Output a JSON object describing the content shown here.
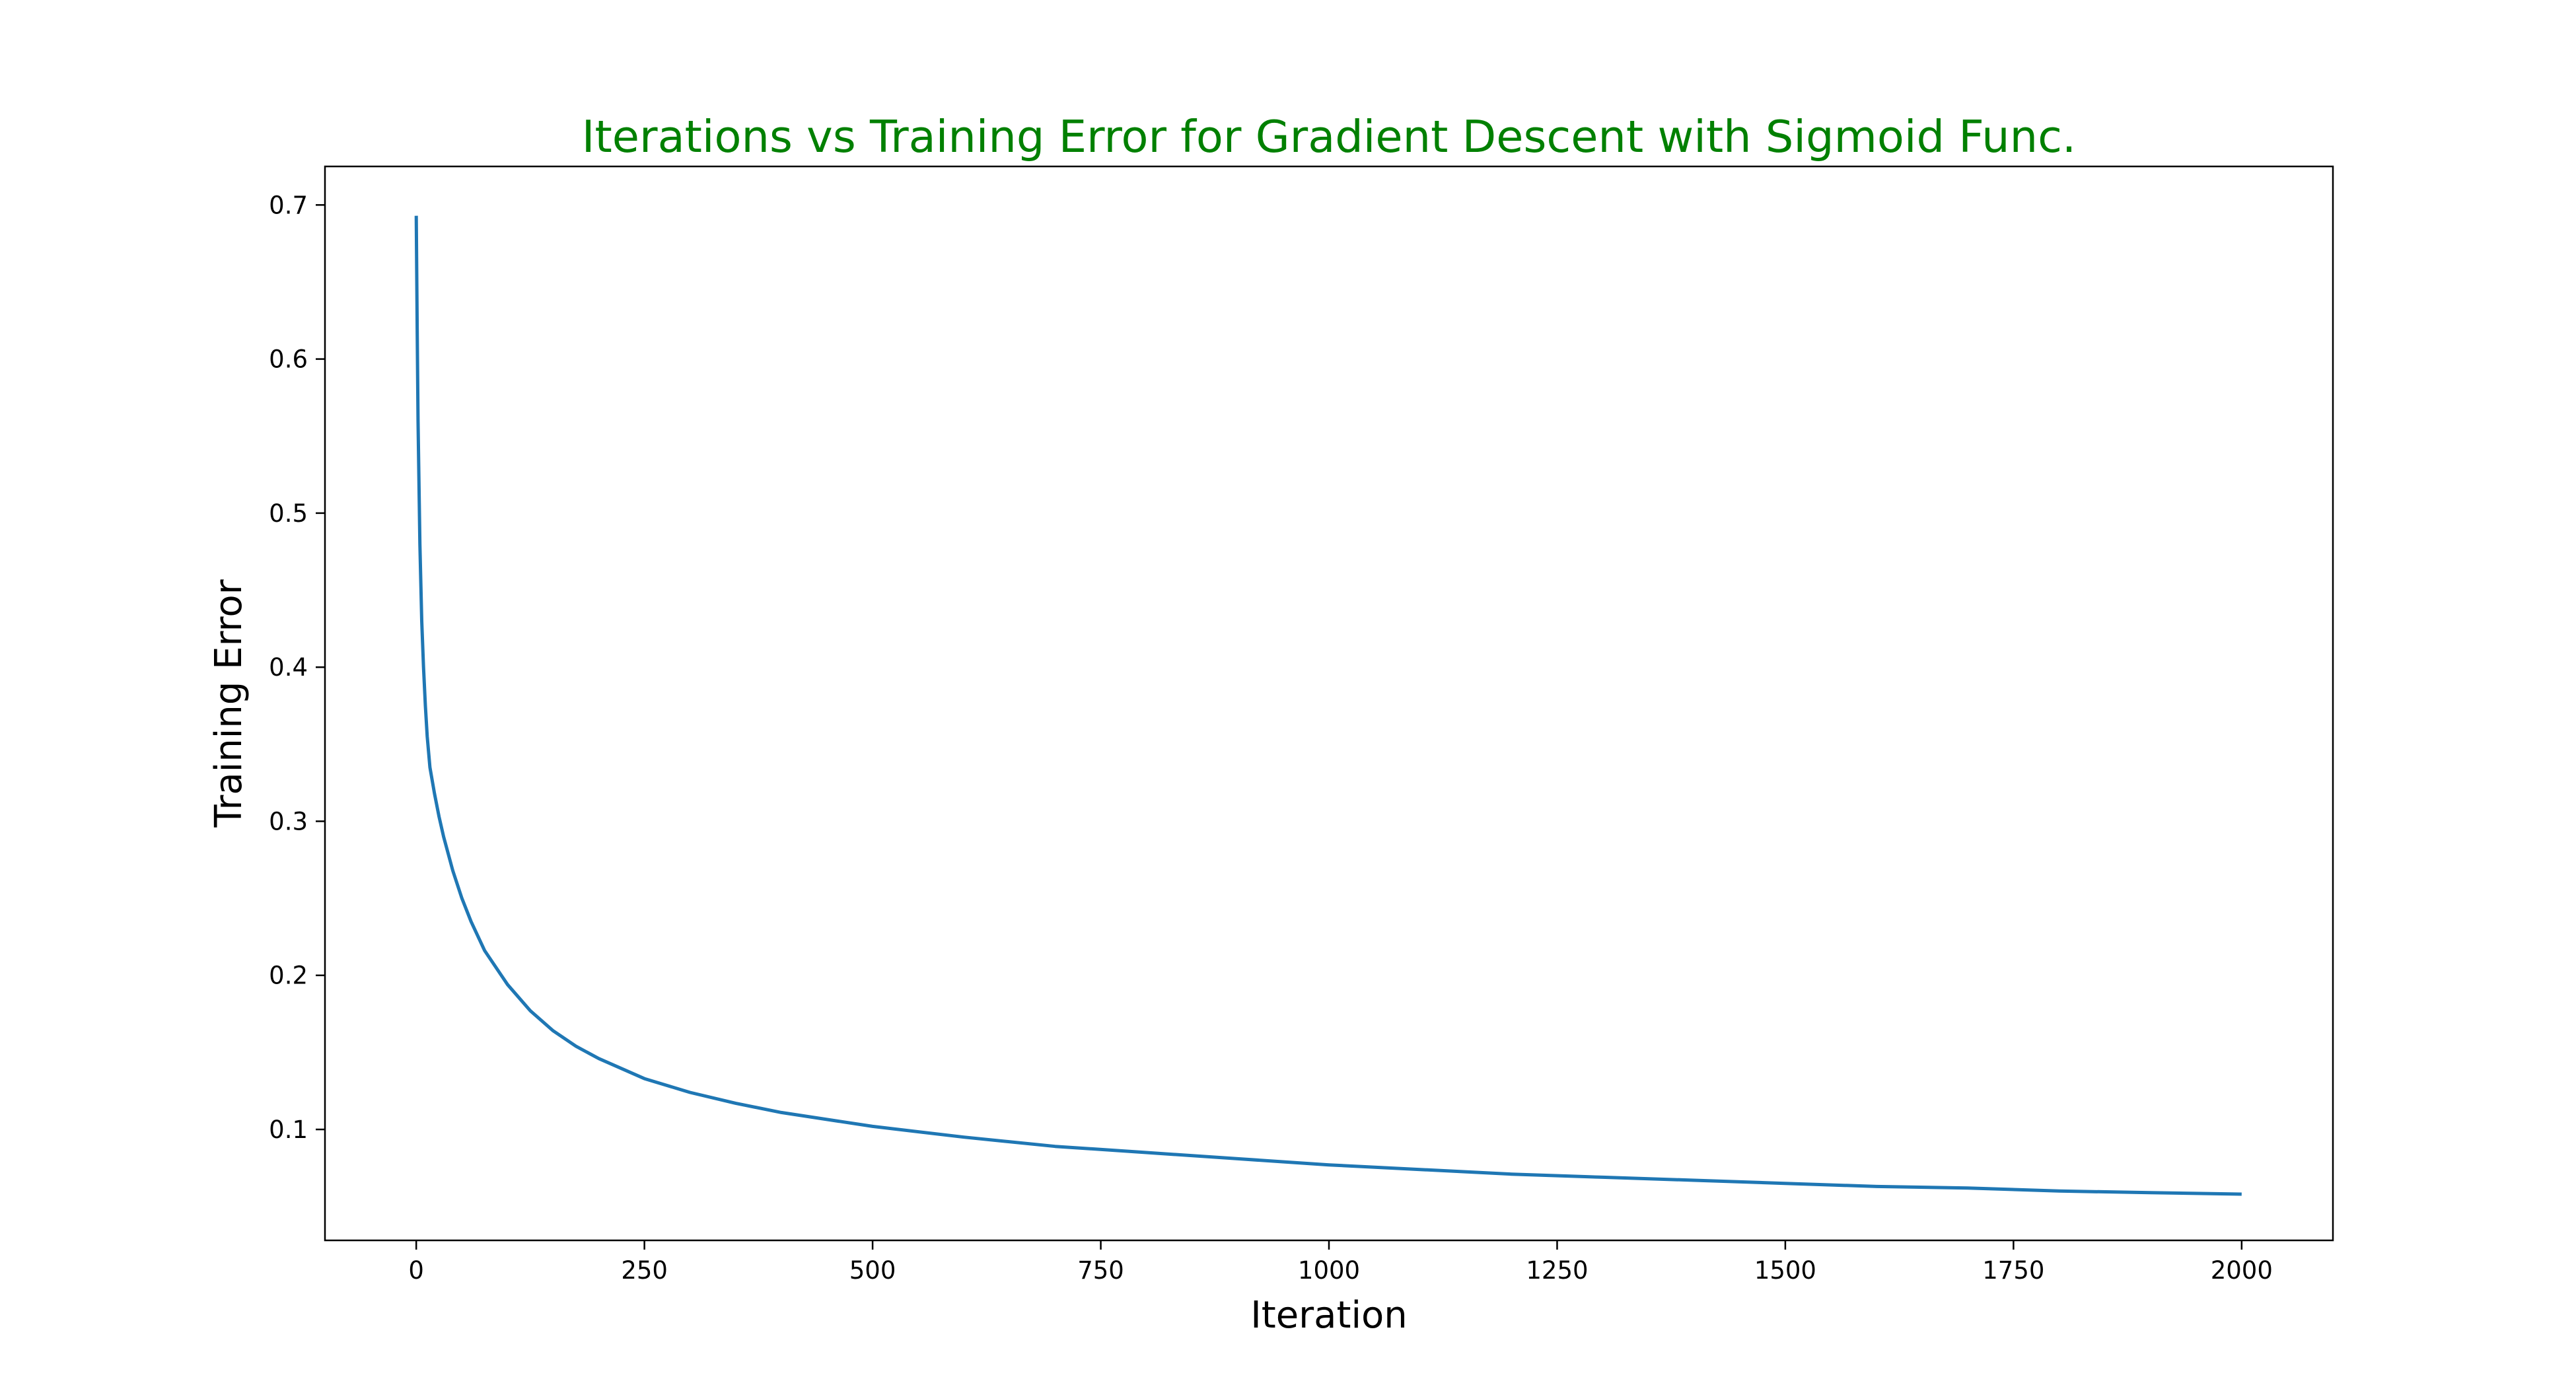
{
  "chart_data": {
    "type": "line",
    "title": "Iterations vs Training Error for Gradient Descent with Sigmoid Func.",
    "title_color": "#008000",
    "xlabel": "Iteration",
    "ylabel": "Training Error",
    "xlim": [
      -100,
      2100
    ],
    "ylim": [
      0.028,
      0.725
    ],
    "xticks": [
      0,
      250,
      500,
      750,
      1000,
      1250,
      1500,
      1750,
      2000
    ],
    "xtick_labels": [
      "0",
      "250",
      "500",
      "750",
      "1000",
      "1250",
      "1500",
      "1750",
      "2000"
    ],
    "yticks": [
      0.1,
      0.2,
      0.3,
      0.4,
      0.5,
      0.6,
      0.7
    ],
    "ytick_labels": [
      "0.1",
      "0.2",
      "0.3",
      "0.4",
      "0.5",
      "0.6",
      "0.7"
    ],
    "grid": false,
    "legend": false,
    "series": [
      {
        "color": "#1f77b4",
        "x": [
          0,
          1,
          2,
          4,
          6,
          8,
          10,
          12,
          15,
          20,
          25,
          30,
          40,
          50,
          60,
          75,
          100,
          125,
          150,
          175,
          200,
          250,
          300,
          350,
          400,
          500,
          600,
          700,
          800,
          900,
          1000,
          1100,
          1200,
          1300,
          1400,
          1500,
          1600,
          1700,
          1800,
          1900,
          2000
        ],
        "y": [
          0.693,
          0.62,
          0.56,
          0.48,
          0.43,
          0.4,
          0.375,
          0.355,
          0.335,
          0.318,
          0.303,
          0.29,
          0.268,
          0.25,
          0.235,
          0.216,
          0.194,
          0.177,
          0.164,
          0.154,
          0.146,
          0.133,
          0.124,
          0.117,
          0.111,
          0.102,
          0.095,
          0.089,
          0.085,
          0.081,
          0.077,
          0.074,
          0.071,
          0.069,
          0.067,
          0.065,
          0.063,
          0.062,
          0.06,
          0.059,
          0.058
        ]
      }
    ]
  }
}
